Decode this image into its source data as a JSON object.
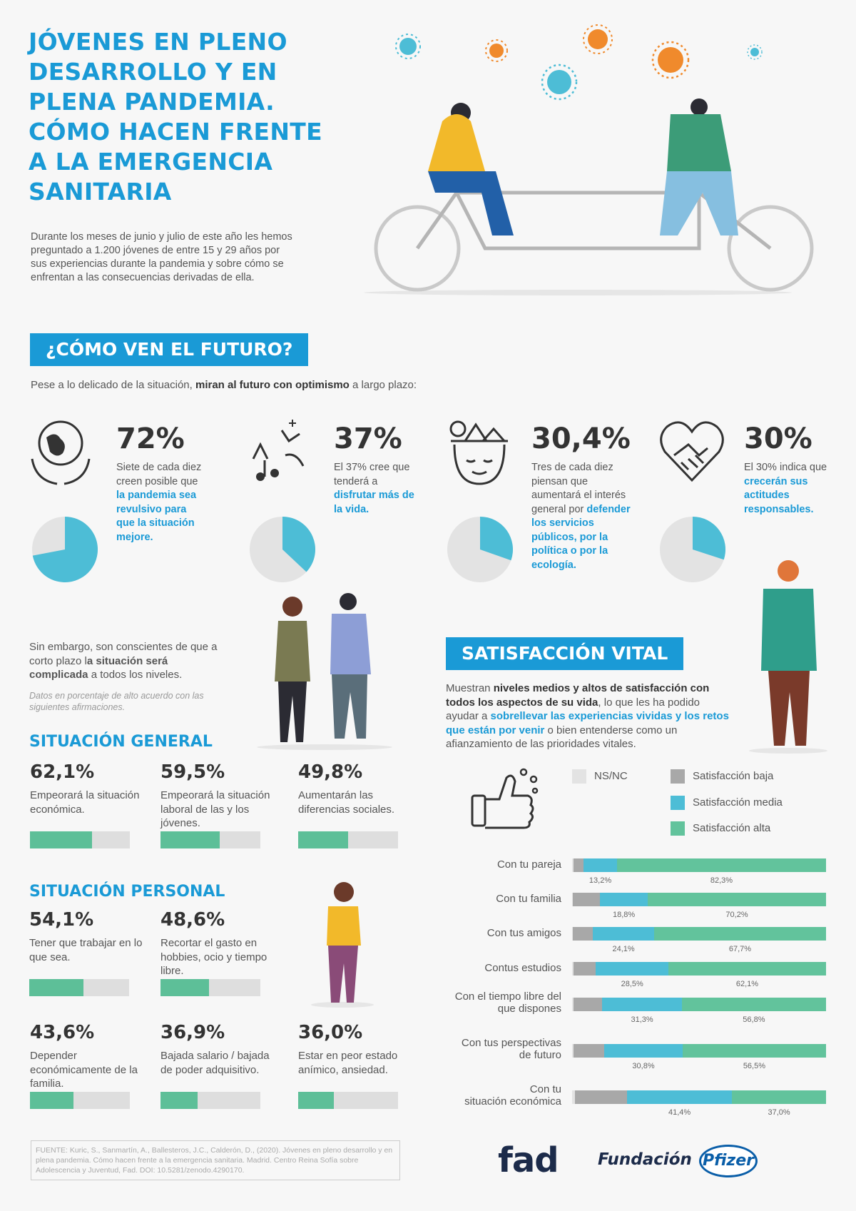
{
  "header": {
    "title": "JÓVENES EN PLENO DESARROLLO Y EN PLENA PANDEMIA. CÓMO HACEN FRENTE A LA EMERGENCIA SANITARIA",
    "intro": "Durante los meses de junio y julio de este año les hemos preguntado a 1.200 jóvenes de entre 15 y 29 años por sus experiencias durante la pandemia y sobre cómo se enfrentan a las consecuencias derivadas de ella."
  },
  "futuro": {
    "heading": "¿CÓMO VEN EL FUTURO?",
    "lead_pre": "Pese a lo delicado de la situación, ",
    "lead_bold": "miran al futuro con optimismo",
    "lead_post": " a largo plazo:",
    "stats": [
      {
        "pct": "72%",
        "value": 72,
        "icon": "globe-hands-icon",
        "text_pre": "Siete de cada diez creen posible que ",
        "text_hl": "la pandemia sea revulsivo para que la situación mejore."
      },
      {
        "pct": "37%",
        "value": 37,
        "icon": "enjoy-life-icon",
        "text_pre": "El 37% cree que tenderá a ",
        "text_hl": "disfrutar más de la vida."
      },
      {
        "pct": "30,4%",
        "value": 30.4,
        "icon": "mind-nature-icon",
        "text_pre": "Tres de cada diez piensan que aumentará el interés general por ",
        "text_hl": "defender los servicios públicos, por la política o por la ecología."
      },
      {
        "pct": "30%",
        "value": 30,
        "icon": "heart-handshake-icon",
        "text_pre": "El 30% indica que ",
        "text_hl": "crecerán sus actitudes responsables."
      }
    ]
  },
  "corto_plazo": {
    "text_pre": "Sin embargo, son conscientes de que a corto plazo l",
    "text_bold": "a situación será complicada",
    "text_post": " a todos los niveles.",
    "note": "Datos en porcentaje de alto acuerdo con las siguientes afirmaciones."
  },
  "situacion_general": {
    "heading": "SITUACIÓN GENERAL",
    "items": [
      {
        "pct": "62,1%",
        "value": 62.1,
        "desc": "Empeorará la situación económica."
      },
      {
        "pct": "59,5%",
        "value": 59.5,
        "desc": "Empeorará la situación laboral de las y los jóvenes."
      },
      {
        "pct": "49,8%",
        "value": 49.8,
        "desc": "Aumentarán las diferencias sociales."
      }
    ]
  },
  "situacion_personal": {
    "heading": "SITUACIÓN PERSONAL",
    "items": [
      {
        "pct": "54,1%",
        "value": 54.1,
        "desc": "Tener que trabajar en lo que sea."
      },
      {
        "pct": "48,6%",
        "value": 48.6,
        "desc": "Recortar el gasto en hobbies, ocio y tiempo libre."
      },
      {
        "pct": "43,6%",
        "value": 43.6,
        "desc": "Depender económicamente de la familia."
      },
      {
        "pct": "36,9%",
        "value": 36.9,
        "desc": "Bajada salario / bajada de poder adquisitivo."
      },
      {
        "pct": "36,0%",
        "value": 36.0,
        "desc": "Estar en peor estado anímico, ansiedad."
      }
    ]
  },
  "satisfaccion": {
    "heading": "SATISFACCIÓN VITAL",
    "lead_1": "Muestran ",
    "lead_b1": "niveles medios y altos de satisfacción con todos los aspectos de su vida",
    "lead_2": ", lo que les ha podido ayudar a ",
    "lead_b2": "sobrellevar las experiencias vividas y los retos que están por venir",
    "lead_3": " o bien entenderse como un afianzamiento de las prioridades vitales.",
    "legend": [
      {
        "label": "NS/NC",
        "color": "#e3e3e3"
      },
      {
        "label": "Satisfacción baja",
        "color": "#a8a8a8"
      },
      {
        "label": "Satisfacción media",
        "color": "#4dbdd6"
      },
      {
        "label": "Satisfacción alta",
        "color": "#62c39c"
      }
    ]
  },
  "chart_data": {
    "type": "bar",
    "orientation": "horizontal-stacked",
    "categories": [
      "Con tu pareja",
      "Con tu familia",
      "Con tus amigos",
      "Contus estudios",
      "Con el tiempo libre del que dispones",
      "Con tus perspectivas de futuro",
      "Con tu situación económica"
    ],
    "series": [
      {
        "name": "NS/NC",
        "values": [
          0.5,
          0.3,
          0.4,
          0.6,
          0.5,
          0.5,
          1.0
        ]
      },
      {
        "name": "Satisfacción baja",
        "values": [
          4.0,
          10.7,
          7.8,
          8.8,
          11.4,
          12.2,
          20.6
        ]
      },
      {
        "name": "Satisfacción media",
        "values": [
          13.2,
          18.8,
          24.1,
          28.5,
          31.3,
          30.8,
          41.4
        ]
      },
      {
        "name": "Satisfacción alta",
        "values": [
          82.3,
          70.2,
          67.7,
          62.1,
          56.8,
          56.5,
          37.0
        ]
      }
    ],
    "labels_media": [
      "13,2%",
      "18,8%",
      "24,1%",
      "28,5%",
      "31,3%",
      "30,8%",
      "41,4%"
    ],
    "labels_alta": [
      "82,3%",
      "70,2%",
      "67,7%",
      "62,1%",
      "56,8%",
      "56,5%",
      "37,0%"
    ],
    "xlim": [
      0,
      100
    ]
  },
  "footer": {
    "source": "FUENTE: Kuric, S., Sanmartín, A., Ballesteros, J.C., Calderón, D., (2020). Jóvenes en pleno desarrollo y en plena pandemia. Cómo hacen frente a la emergencia sanitaria. Madrid. Centro Reina Sofía sobre Adolescencia y Juventud, Fad. DOI: 10.5281/zenodo.4290170.",
    "logo_fad": "fad",
    "logo_fundacion": "Fundación",
    "logo_pfizer": "Pfizer"
  }
}
